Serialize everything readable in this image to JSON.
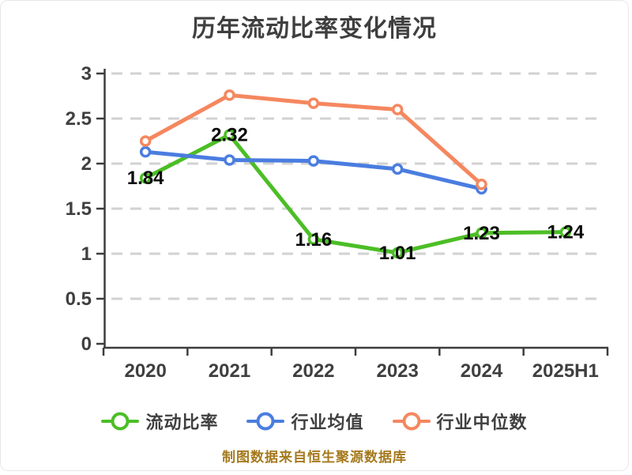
{
  "chart_data": {
    "type": "line",
    "title": "历年流动比率变化情况",
    "categories": [
      "2020",
      "2021",
      "2022",
      "2023",
      "2024",
      "2025H1"
    ],
    "series": [
      {
        "name": "流动比率",
        "color": "#4cbe26",
        "values": [
          1.84,
          2.32,
          1.16,
          1.01,
          1.23,
          1.24
        ],
        "point_labels": [
          "1.84",
          "2.32",
          "1.16",
          "1.01",
          "1.23",
          "1.24"
        ]
      },
      {
        "name": "行业均值",
        "color": "#4a7de0",
        "values": [
          2.13,
          2.04,
          2.03,
          1.94,
          1.72,
          null
        ],
        "point_labels": []
      },
      {
        "name": "行业中位数",
        "color": "#f5875f",
        "values": [
          2.25,
          2.76,
          2.67,
          2.6,
          1.77,
          null
        ],
        "point_labels": []
      }
    ],
    "ylim": [
      0,
      3
    ],
    "yticks": [
      "3",
      "2.5",
      "2",
      "1.5",
      "1",
      "0.5",
      "0"
    ],
    "grid": "dashed horizontal",
    "legend_position": "bottom",
    "footer": "制图数据来自恒生聚源数据库",
    "colors": {
      "axis": "#3d3d3d",
      "grid": "#d2d2d2",
      "tick_label": "#3f3f3f",
      "point_label": "#0b0b0b",
      "footer_text": "#a5791c",
      "marker_fill": "#ffffff"
    }
  }
}
